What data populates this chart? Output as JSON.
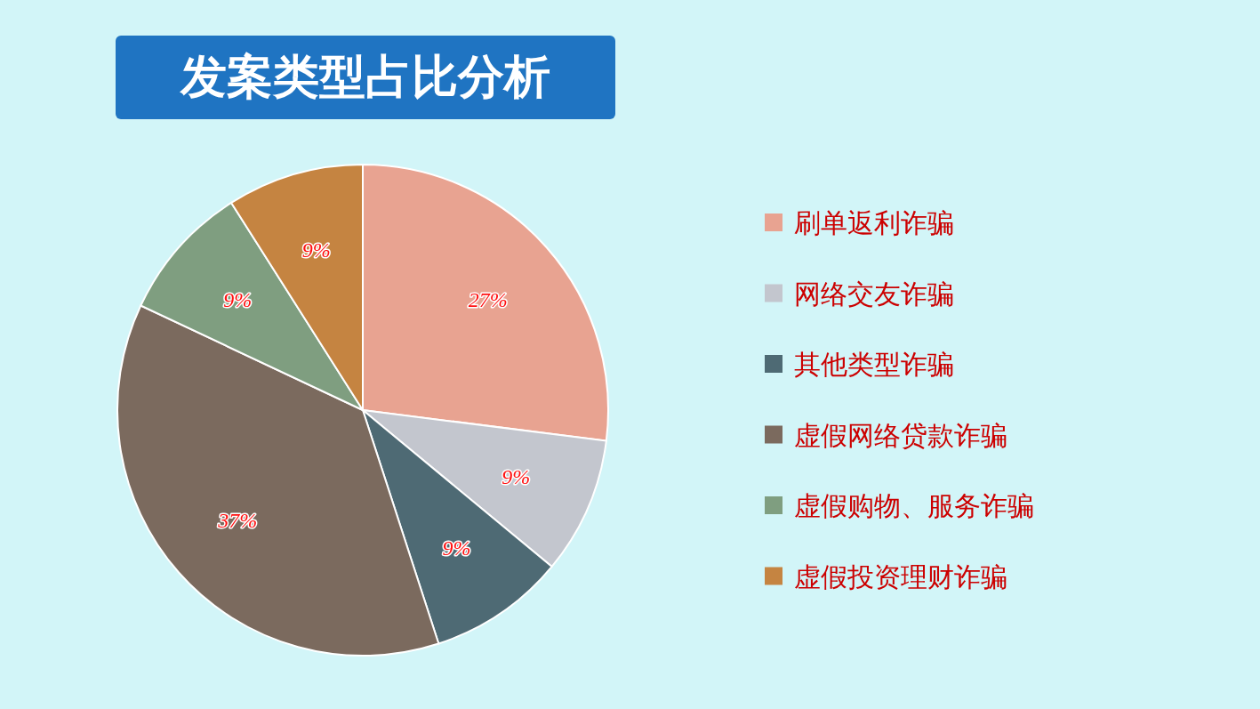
{
  "chart_data": {
    "type": "pie",
    "title": "发案类型占比分析",
    "categories": [
      "刷单返利诈骗",
      "网络交友诈骗",
      "其他类型诈骗",
      "虚假网络贷款诈骗",
      "虚假购物、服务诈骗",
      "虚假投资理财诈骗"
    ],
    "values": [
      27,
      9,
      9,
      37,
      9,
      9
    ],
    "value_labels": [
      "27%",
      "9%",
      "9%",
      "37%",
      "9%",
      "9%"
    ],
    "colors": [
      "#e8a391",
      "#c3c6ce",
      "#4e6a74",
      "#7b6a5e",
      "#7f9e80",
      "#c58441"
    ],
    "legend": "right"
  }
}
